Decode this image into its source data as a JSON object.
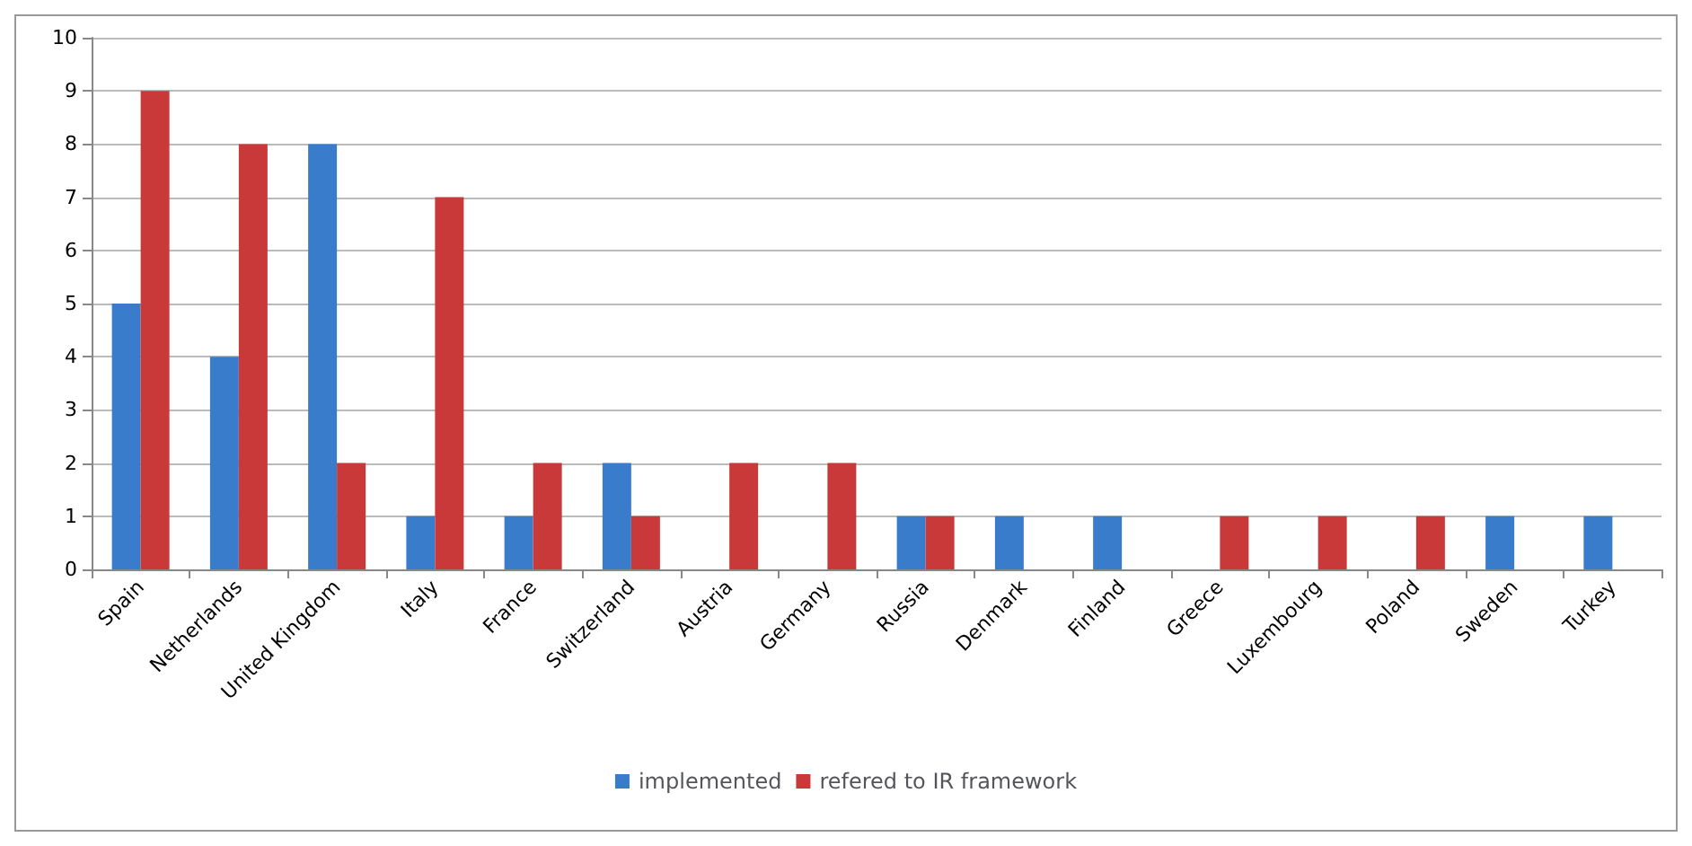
{
  "chart_data": {
    "type": "bar",
    "categories": [
      "Spain",
      "Netherlands",
      "United Kingdom",
      "Italy",
      "France",
      "Switzerland",
      "Austria",
      "Germany",
      "Russia",
      "Denmark",
      "Finland",
      "Greece",
      "Luxembourg",
      "Poland",
      "Sweden",
      "Turkey"
    ],
    "series": [
      {
        "name": "implemented",
        "color": "#3a7ccc",
        "values": [
          5,
          4,
          8,
          1,
          1,
          2,
          0,
          0,
          1,
          1,
          1,
          0,
          0,
          0,
          1,
          1
        ]
      },
      {
        "name": "refered to IR framework",
        "color": "#c9393a",
        "values": [
          9,
          8,
          2,
          7,
          2,
          1,
          2,
          2,
          1,
          0,
          0,
          1,
          1,
          1,
          0,
          0
        ]
      }
    ],
    "ylim": [
      0,
      10
    ],
    "yticks": [
      0,
      1,
      2,
      3,
      4,
      5,
      6,
      7,
      8,
      9,
      10
    ],
    "grid": "y",
    "legend": "bottom"
  }
}
